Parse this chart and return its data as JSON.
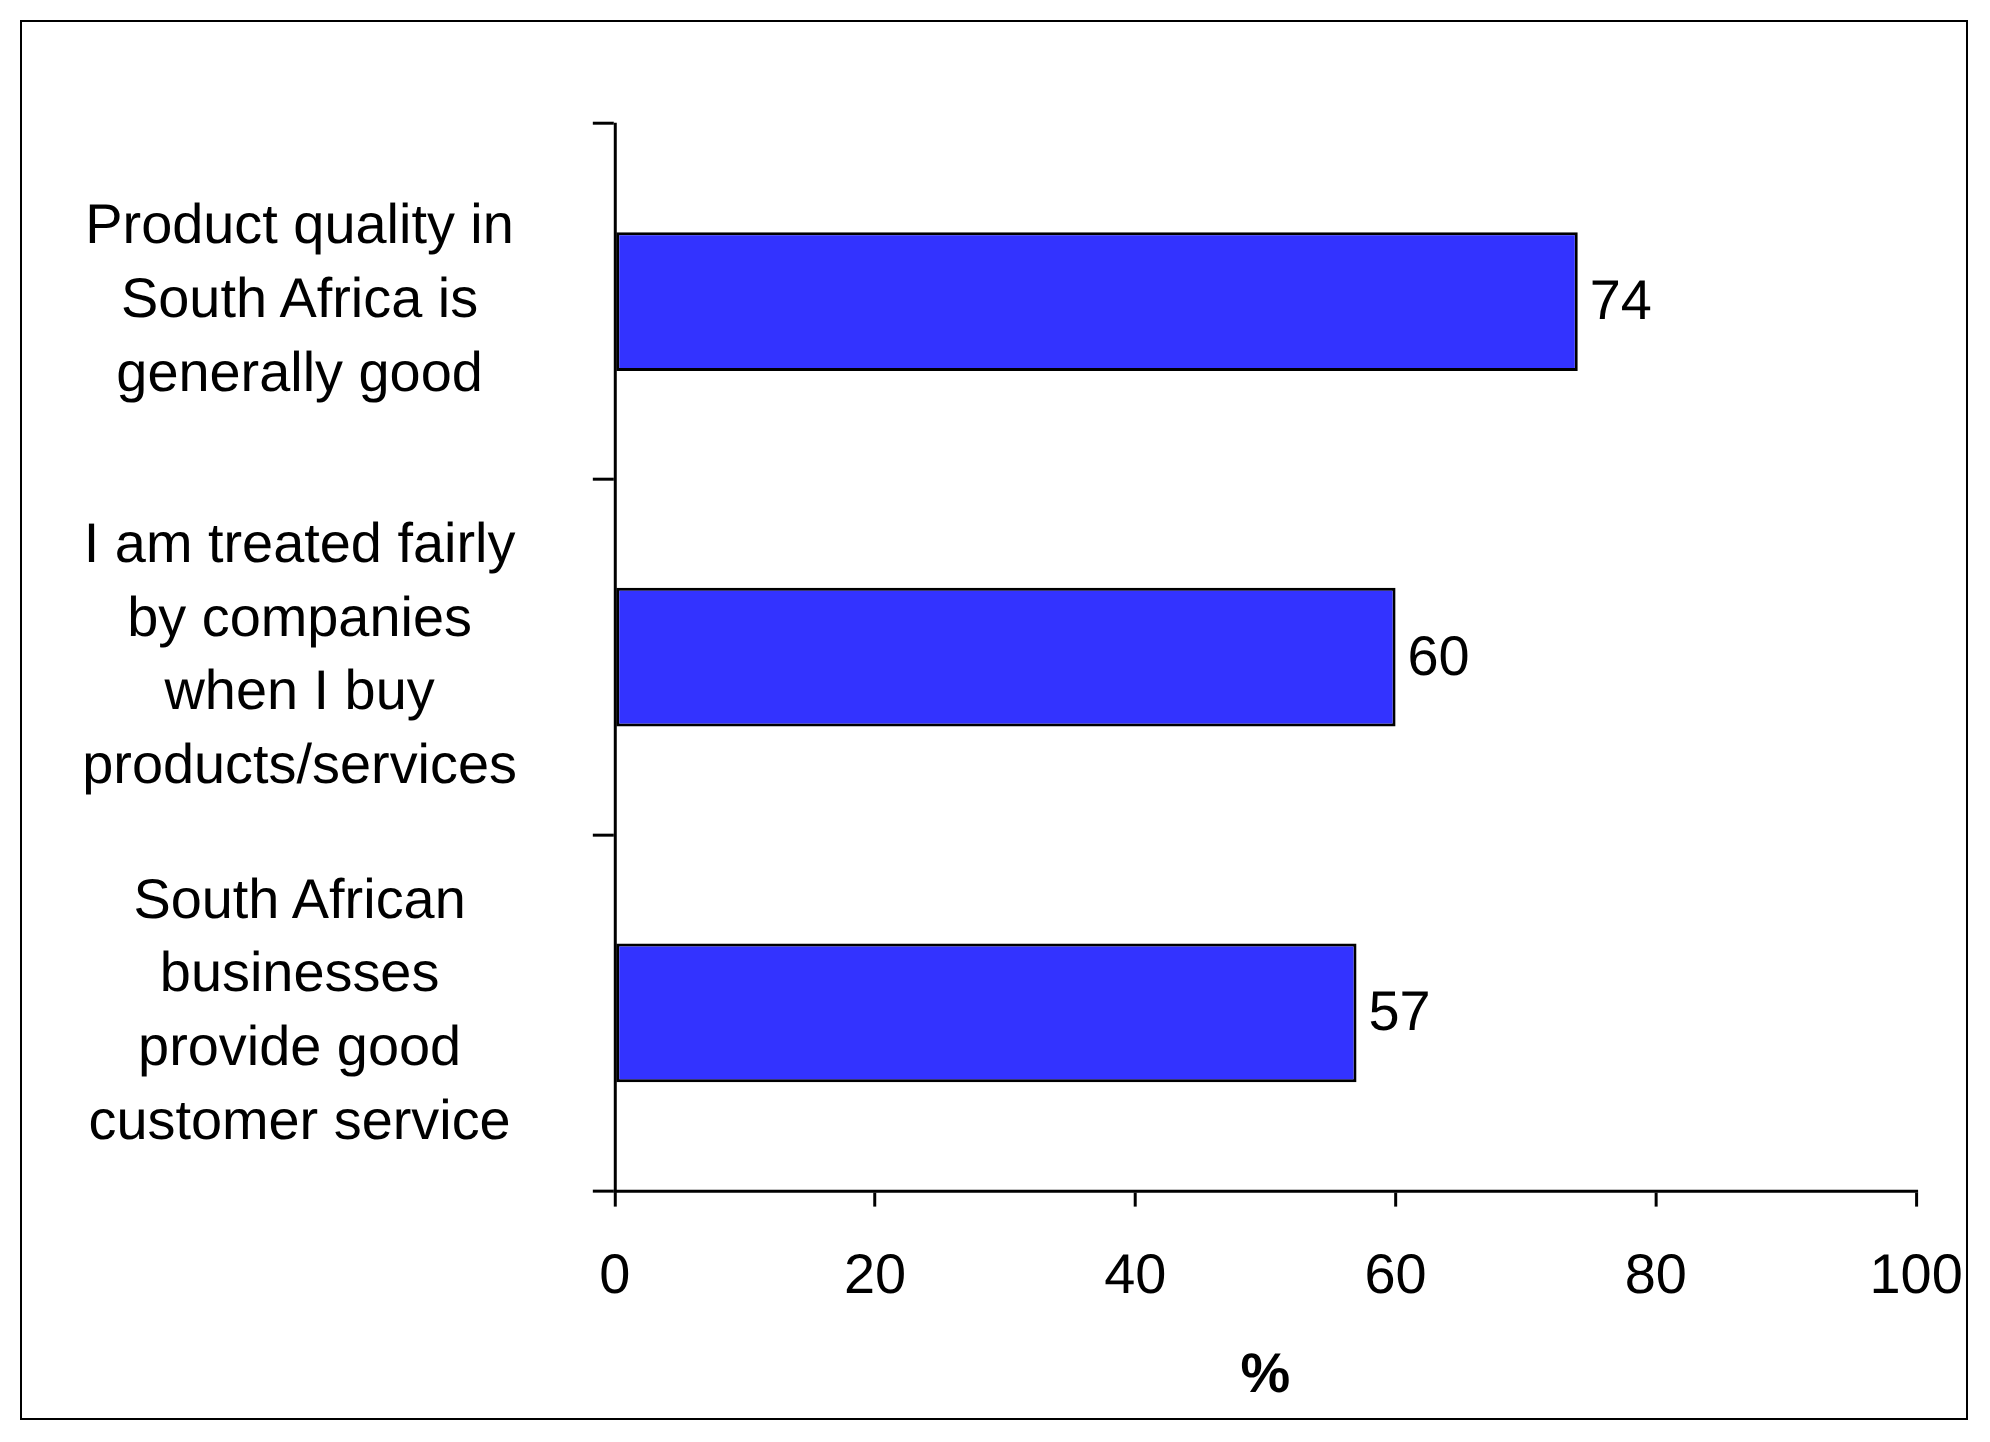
{
  "chart_data": {
    "type": "bar",
    "orientation": "horizontal",
    "categories": [
      "Product quality in South Africa is generally good",
      "I am treated fairly by companies when I buy products/services",
      "South African businesses provide good customer service"
    ],
    "values": [
      74,
      60,
      57
    ],
    "color": "#3333ff",
    "xlabel": "%",
    "xlim": [
      0,
      100
    ],
    "xticks": [
      0,
      20,
      40,
      60,
      80,
      100
    ],
    "data_labels": true
  }
}
